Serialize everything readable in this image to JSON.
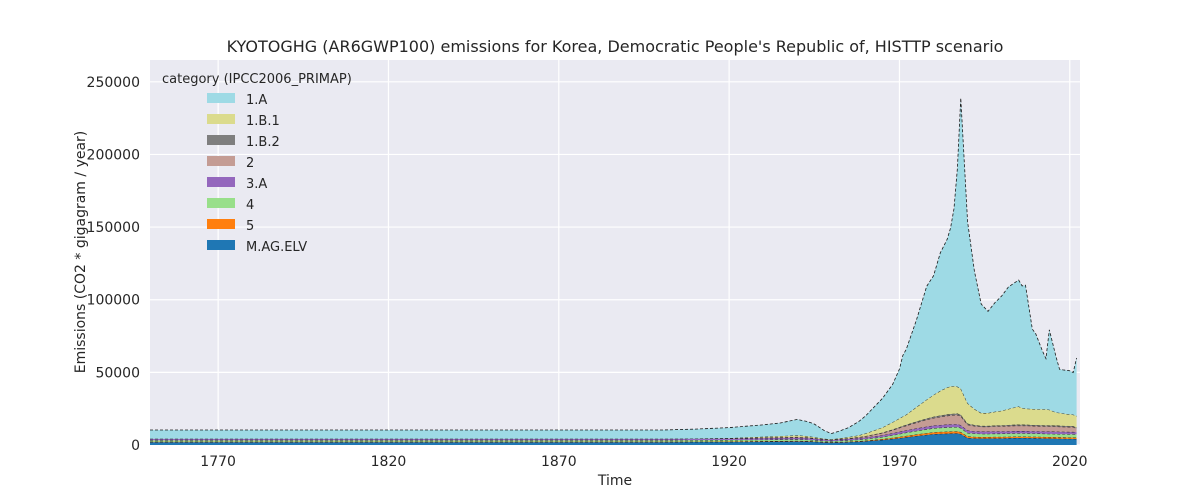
{
  "chart_data": {
    "type": "area",
    "stacked": true,
    "title": "KYOTOGHG (AR6GWP100) emissions for Korea, Democratic People's Republic of, HISTTP scenario",
    "xlabel": "Time",
    "ylabel": "Emissions (CO2 * gigagram / year)",
    "xlim": [
      1750,
      2023
    ],
    "ylim": [
      0,
      265000
    ],
    "x_ticks": [
      1770,
      1820,
      1870,
      1920,
      1970,
      2020
    ],
    "y_ticks": [
      0,
      50000,
      100000,
      150000,
      200000,
      250000
    ],
    "x_tick_labels": [
      "1770",
      "1820",
      "1870",
      "1920",
      "1970",
      "2020"
    ],
    "y_tick_labels": [
      "0",
      "50000",
      "100000",
      "150000",
      "200000",
      "250000"
    ],
    "grid": true,
    "background": "#eaeaf2",
    "legend": {
      "title": "category (IPCC2006_PRIMAP)",
      "placement": "upper-left",
      "order": [
        "1.A",
        "1.B.1",
        "1.B.2",
        "2",
        "3.A",
        "4",
        "5",
        "M.AG.ELV"
      ]
    },
    "x": [
      1750,
      1900,
      1910,
      1920,
      1930,
      1935,
      1940,
      1943,
      1945,
      1948,
      1950,
      1952,
      1955,
      1958,
      1960,
      1965,
      1968,
      1970,
      1971,
      1972,
      1975,
      1978,
      1980,
      1982,
      1984,
      1985,
      1986,
      1987,
      1988,
      1990,
      1992,
      1994,
      1996,
      1998,
      2000,
      2002,
      2004,
      2005,
      2006,
      2007,
      2009,
      2010,
      2012,
      2013,
      2014,
      2016,
      2017,
      2018,
      2020,
      2021,
      2022
    ],
    "series": [
      {
        "name": "M.AG.ELV",
        "color": "#1f77b4",
        "values": [
          2000,
          2000,
          2050,
          2100,
          2300,
          2400,
          2500,
          2400,
          2200,
          1800,
          1600,
          1800,
          2000,
          2300,
          2600,
          3500,
          4200,
          4700,
          5000,
          5300,
          6200,
          7000,
          7500,
          7700,
          7800,
          7900,
          8000,
          8000,
          7600,
          4800,
          4600,
          4500,
          4500,
          4600,
          4600,
          4700,
          4800,
          4800,
          4800,
          4800,
          4700,
          4700,
          4600,
          4500,
          4500,
          4400,
          4300,
          4300,
          4200,
          4200,
          4100
        ]
      },
      {
        "name": "5",
        "color": "#ff7f0e",
        "values": [
          300,
          300,
          310,
          320,
          340,
          350,
          360,
          350,
          330,
          300,
          280,
          300,
          330,
          360,
          400,
          600,
          800,
          900,
          950,
          1000,
          1100,
          1200,
          1300,
          1350,
          1400,
          1400,
          1400,
          1400,
          1350,
          1100,
          1000,
          1000,
          1000,
          1000,
          1000,
          1000,
          1000,
          1000,
          1000,
          1000,
          1000,
          1000,
          1000,
          1000,
          1000,
          1000,
          1000,
          1000,
          1000,
          1000,
          1000
        ]
      },
      {
        "name": "4",
        "color": "#98df8a",
        "values": [
          1000,
          1000,
          1000,
          1000,
          1000,
          1000,
          1000,
          900,
          800,
          700,
          700,
          800,
          900,
          1000,
          1100,
          1400,
          1700,
          2000,
          2100,
          2200,
          2400,
          2600,
          2700,
          2800,
          2900,
          2900,
          2900,
          2900,
          2800,
          2400,
          2300,
          2200,
          2200,
          2200,
          2200,
          2200,
          2200,
          2200,
          2200,
          2200,
          2200,
          2200,
          2200,
          2200,
          2200,
          2200,
          2200,
          2200,
          2200,
          2200,
          2200
        ]
      },
      {
        "name": "3.A",
        "color": "#9467bd",
        "values": [
          1000,
          1000,
          1020,
          1050,
          1100,
          1120,
          1150,
          1100,
          1050,
          950,
          900,
          950,
          1000,
          1050,
          1100,
          1250,
          1400,
          1500,
          1550,
          1600,
          1750,
          1850,
          1900,
          1950,
          2000,
          2000,
          2000,
          2000,
          1950,
          1700,
          1600,
          1600,
          1600,
          1600,
          1600,
          1600,
          1600,
          1600,
          1600,
          1600,
          1600,
          1600,
          1600,
          1600,
          1600,
          1600,
          1600,
          1600,
          1600,
          1600,
          1600
        ]
      },
      {
        "name": "2",
        "color": "#c49c94",
        "values": [
          0,
          0,
          0,
          100,
          300,
          400,
          500,
          400,
          300,
          150,
          100,
          200,
          400,
          600,
          800,
          1500,
          2200,
          2700,
          3000,
          3200,
          4000,
          4800,
          5200,
          5600,
          6000,
          6200,
          6300,
          6400,
          6200,
          4000,
          3600,
          3300,
          3300,
          3400,
          3500,
          3600,
          3700,
          3700,
          3700,
          3700,
          3600,
          3600,
          3500,
          3500,
          3500,
          3500,
          3500,
          3400,
          3400,
          3400,
          2500
        ]
      },
      {
        "name": "1.B.2",
        "color": "#7f7f7f",
        "values": [
          0,
          0,
          0,
          0,
          50,
          80,
          100,
          80,
          60,
          30,
          20,
          30,
          50,
          80,
          100,
          300,
          400,
          500,
          550,
          600,
          700,
          800,
          850,
          900,
          950,
          950,
          950,
          950,
          900,
          700,
          650,
          600,
          600,
          600,
          650,
          700,
          700,
          700,
          700,
          700,
          700,
          700,
          700,
          700,
          700,
          700,
          700,
          700,
          700,
          700,
          500
        ]
      },
      {
        "name": "1.B.1",
        "color": "#dbdb8d",
        "values": [
          0,
          0,
          50,
          200,
          600,
          800,
          1000,
          900,
          700,
          400,
          300,
          400,
          700,
          1200,
          1800,
          3500,
          5000,
          6000,
          6500,
          7000,
          10000,
          13000,
          15000,
          17000,
          18500,
          19000,
          19000,
          18500,
          18000,
          14000,
          11000,
          8800,
          8800,
          9500,
          10000,
          11000,
          12000,
          12500,
          11500,
          11000,
          11000,
          10800,
          11000,
          11000,
          10800,
          9000,
          8800,
          8500,
          8000,
          7800,
          8000
        ]
      },
      {
        "name": "1.A",
        "color": "#9edae5",
        "values": [
          6000,
          6000,
          6500,
          7200,
          8200,
          9000,
          11000,
          10000,
          9000,
          5500,
          4000,
          4800,
          6500,
          9500,
          12000,
          20000,
          26000,
          34000,
          42000,
          45000,
          60000,
          78000,
          82000,
          95000,
          102000,
          109000,
          122000,
          150000,
          200000,
          125000,
          95000,
          75000,
          70000,
          75000,
          79000,
          84000,
          86000,
          87000,
          84000,
          85000,
          55000,
          52000,
          40000,
          35000,
          55000,
          38000,
          30000,
          30000,
          30000,
          29000,
          40000
        ]
      }
    ]
  }
}
